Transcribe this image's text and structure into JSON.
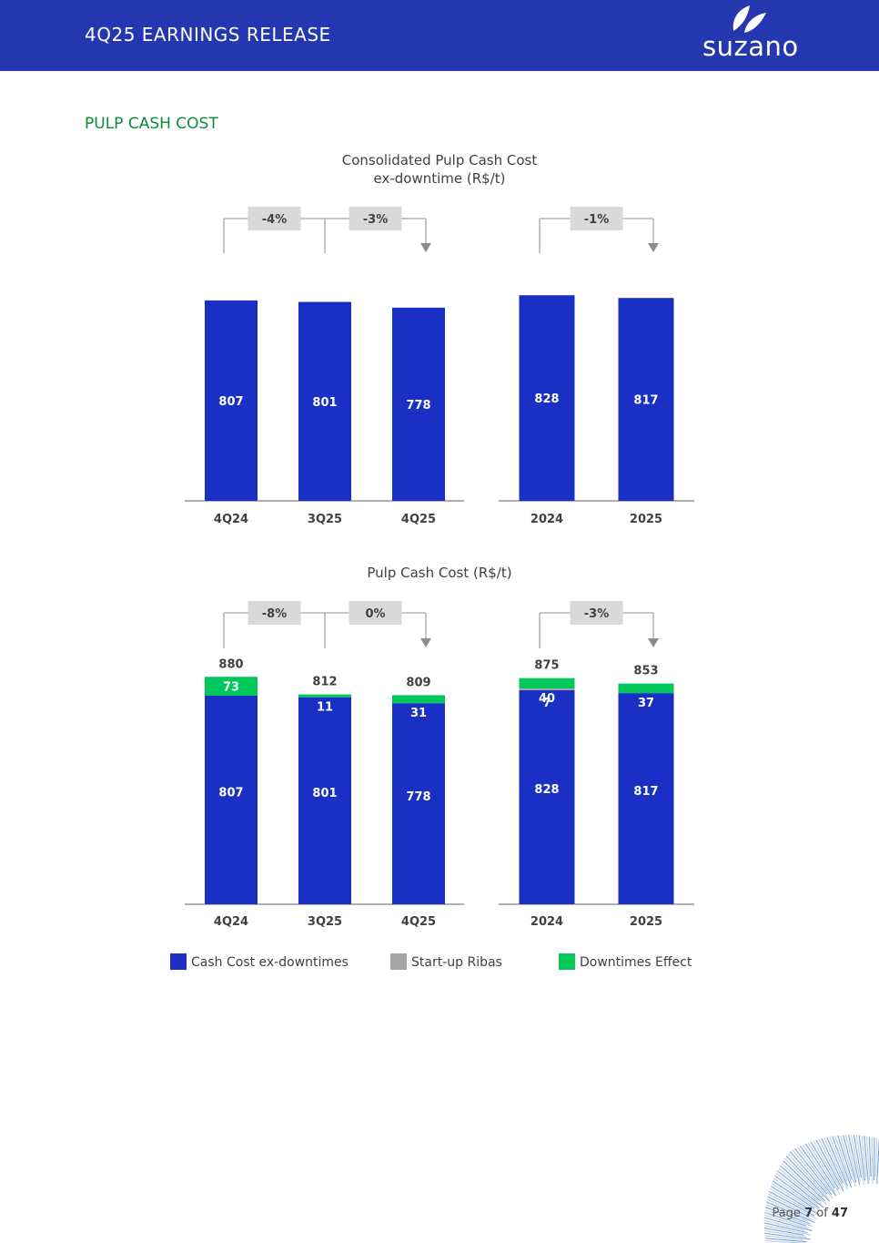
{
  "header": {
    "title": "4Q25 EARNINGS RELEASE",
    "logo_text": "suzano"
  },
  "section_title": "PULP CASH COST",
  "chart_data": [
    {
      "type": "bar",
      "title": "Consolidated Pulp Cash Cost ex-downtime (R$/t)",
      "title_lines": [
        "Consolidated Pulp Cash Cost",
        "ex-downtime (R$/t)"
      ],
      "panels": [
        {
          "categories": [
            "4Q24",
            "3Q25",
            "4Q25"
          ],
          "series": [
            {
              "name": "Cash Cost ex-downtimes",
              "values": [
                807,
                801,
                778
              ],
              "labels": [
                "807",
                "801",
                "778"
              ]
            }
          ],
          "variations": [
            "-4%",
            "-3%"
          ]
        },
        {
          "categories": [
            "2024",
            "2025"
          ],
          "series": [
            {
              "name": "Cash Cost ex-downtimes",
              "values": [
                828,
                817
              ],
              "labels": [
                "828",
                "817"
              ]
            }
          ],
          "variations": [
            "-1%"
          ]
        }
      ]
    },
    {
      "type": "bar",
      "stacked": true,
      "title": "Pulp Cash Cost (R$/t)",
      "title_lines": [
        "Pulp Cash Cost (R$/t)"
      ],
      "panels": [
        {
          "categories": [
            "4Q24",
            "3Q25",
            "4Q25"
          ],
          "series": [
            {
              "name": "Cash Cost ex-downtimes",
              "values": [
                807,
                801,
                778
              ],
              "labels": [
                "807",
                "801",
                "778"
              ]
            },
            {
              "name": "Start-up Ribas",
              "values": [
                0,
                0,
                0
              ],
              "labels": [
                "",
                "",
                ""
              ]
            },
            {
              "name": "Downtimes Effect",
              "values": [
                73,
                11,
                31
              ],
              "labels": [
                "73",
                "11",
                "31"
              ]
            }
          ],
          "totals": [
            "880",
            "812",
            "809"
          ],
          "variations": [
            "-8%",
            "0%"
          ]
        },
        {
          "categories": [
            "2024",
            "2025"
          ],
          "series": [
            {
              "name": "Cash Cost ex-downtimes",
              "values": [
                828,
                817
              ],
              "labels": [
                "828",
                "817"
              ]
            },
            {
              "name": "Start-up Ribas",
              "values": [
                7,
                0
              ],
              "labels": [
                "7",
                ""
              ]
            },
            {
              "name": "Downtimes Effect",
              "values": [
                40,
                37
              ],
              "labels": [
                "40",
                "37"
              ]
            }
          ],
          "totals": [
            "875",
            "853"
          ],
          "variations": [
            "-3%"
          ]
        }
      ]
    }
  ],
  "legend": [
    {
      "label": "Cash Cost ex-downtimes",
      "color": "#1a2fc4"
    },
    {
      "label": "Start-up Ribas",
      "color": "#a6a6a6"
    },
    {
      "label": "Downtimes Effect",
      "color": "#00c85a"
    }
  ],
  "colors": {
    "header": "#2436b0",
    "bar": "#1a2fc4",
    "ribas": "#a6a6a6",
    "downtime": "#00c85a",
    "section": "#0b8a3c"
  },
  "footer": {
    "prefix": "Page ",
    "page": "7",
    "middle": " of ",
    "total": "47"
  }
}
